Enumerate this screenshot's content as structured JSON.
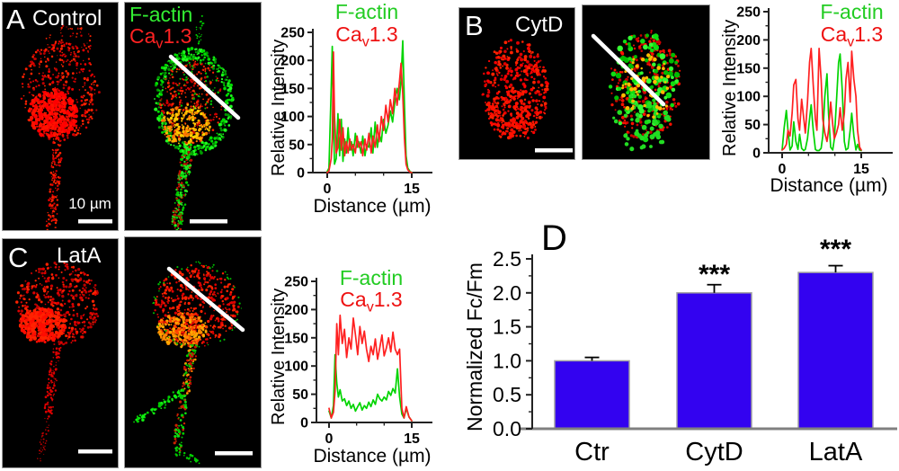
{
  "panels": {
    "a": {
      "letter": "A",
      "title": "Control",
      "scale_label": "10 µm"
    },
    "b": {
      "letter": "B",
      "title": "CytD"
    },
    "c": {
      "letter": "C",
      "title": "LatA"
    },
    "d": {
      "letter": "D"
    }
  },
  "legend": {
    "factin": "F-actin",
    "cav_base": "Ca",
    "cav_sub": "v",
    "cav_rest": "1.3",
    "cav_full": "Cav1.3"
  },
  "colors": {
    "factin_green": "#00d400",
    "cav_red": "#ff2020",
    "bar_blue": "#3302f0",
    "image_background": "#000000",
    "annotation_white": "#ffffff"
  },
  "chart_data": [
    {
      "type": "line",
      "panel": "A",
      "ylabel": "Relative Intensity",
      "xlabel": "Distance (µm)",
      "ylim": [
        0,
        250
      ],
      "xlim": [
        0,
        15
      ],
      "yticks": [
        0,
        50,
        100,
        150,
        200,
        250
      ],
      "xticks": [
        0,
        15
      ],
      "xminorticks": [
        5,
        10
      ],
      "yminorstep": 25,
      "grid": false,
      "legend_position": "top",
      "x": [
        0,
        0.3,
        0.7,
        0.9,
        1.1,
        1.3,
        1.6,
        1.9,
        2.2,
        2.5,
        2.8,
        3.1,
        3.4,
        3.7,
        4.0,
        4.3,
        4.6,
        5.0,
        5.3,
        5.6,
        6.0,
        6.3,
        6.7,
        7.0,
        7.4,
        7.8,
        8.1,
        8.5,
        8.9,
        9.2,
        9.6,
        10.0,
        10.4,
        10.8,
        11.2,
        11.6,
        12.0,
        12.4,
        12.8,
        13.1,
        13.4,
        13.7,
        14.0,
        14.3,
        14.7,
        15.0
      ],
      "series": [
        {
          "name": "F-actin",
          "color": "#00d400",
          "y": [
            2,
            8,
            150,
            225,
            90,
            15,
            25,
            105,
            30,
            95,
            20,
            60,
            35,
            80,
            40,
            55,
            30,
            70,
            45,
            55,
            35,
            65,
            30,
            50,
            45,
            80,
            35,
            90,
            45,
            70,
            55,
            95,
            70,
            85,
            110,
            90,
            125,
            150,
            130,
            165,
            235,
            120,
            30,
            8,
            2,
            0
          ]
        },
        {
          "name": "Cav1.3",
          "color": "#ff2020",
          "y": [
            0,
            3,
            25,
            60,
            215,
            100,
            35,
            45,
            95,
            40,
            80,
            30,
            55,
            35,
            60,
            40,
            50,
            35,
            65,
            45,
            55,
            30,
            60,
            40,
            70,
            35,
            65,
            45,
            85,
            55,
            100,
            75,
            120,
            90,
            130,
            105,
            150,
            120,
            160,
            195,
            140,
            60,
            15,
            5,
            1,
            0
          ]
        }
      ]
    },
    {
      "type": "line",
      "panel": "B",
      "ylabel": "Relative Intensity",
      "xlabel": "Distance (µm)",
      "ylim": [
        0,
        250
      ],
      "xlim": [
        0,
        15
      ],
      "yticks": [
        0,
        50,
        100,
        150,
        200,
        250
      ],
      "xticks": [
        0,
        15
      ],
      "xminorticks": [
        5,
        10
      ],
      "yminorstep": 25,
      "grid": false,
      "legend_position": "top",
      "x": [
        0,
        0.4,
        0.8,
        1.1,
        1.5,
        1.9,
        2.2,
        2.6,
        3.0,
        3.3,
        3.7,
        4.1,
        4.4,
        4.8,
        5.2,
        5.5,
        5.9,
        6.3,
        6.6,
        7.0,
        7.4,
        7.7,
        8.1,
        8.5,
        8.8,
        9.2,
        9.6,
        9.9,
        10.3,
        10.7,
        11.0,
        11.4,
        11.8,
        12.1,
        12.5,
        12.9,
        13.2,
        13.6,
        14.0,
        14.3,
        14.7,
        15.0
      ],
      "series": [
        {
          "name": "F-actin",
          "color": "#00d400",
          "y": [
            5,
            45,
            75,
            40,
            5,
            12,
            55,
            20,
            6,
            33,
            8,
            4,
            6,
            25,
            60,
            85,
            40,
            6,
            4,
            4,
            8,
            30,
            100,
            140,
            70,
            10,
            5,
            25,
            90,
            160,
            175,
            110,
            20,
            5,
            8,
            40,
            70,
            30,
            5,
            15,
            5,
            4
          ]
        },
        {
          "name": "Cav1.3",
          "color": "#ff2020",
          "y": [
            5,
            8,
            15,
            40,
            30,
            70,
            120,
            130,
            60,
            40,
            95,
            60,
            35,
            90,
            160,
            185,
            120,
            60,
            40,
            185,
            130,
            60,
            35,
            20,
            40,
            90,
            50,
            25,
            35,
            50,
            80,
            40,
            70,
            130,
            160,
            90,
            180,
            130,
            100,
            40,
            10,
            5
          ]
        }
      ]
    },
    {
      "type": "line",
      "panel": "C",
      "ylabel": "Relative Intensity",
      "xlabel": "Distance (µm)",
      "ylim": [
        0,
        250
      ],
      "xlim": [
        0,
        15
      ],
      "yticks": [
        0,
        50,
        100,
        150,
        200,
        250
      ],
      "xticks": [
        0,
        15
      ],
      "xminorticks": [
        5,
        10
      ],
      "yminorstep": 25,
      "grid": false,
      "legend_position": "top",
      "x": [
        0,
        0.4,
        0.8,
        1.1,
        1.4,
        1.7,
        2.0,
        2.4,
        2.8,
        3.2,
        3.6,
        4.0,
        4.4,
        4.8,
        5.2,
        5.6,
        6.0,
        6.4,
        6.8,
        7.2,
        7.6,
        8.0,
        8.4,
        8.8,
        9.2,
        9.6,
        10.0,
        10.4,
        10.8,
        11.2,
        11.6,
        12.0,
        12.4,
        12.8,
        13.2,
        13.6,
        14.0,
        14.5,
        15.0
      ],
      "series": [
        {
          "name": "F-actin",
          "color": "#00d400",
          "y": [
            20,
            8,
            30,
            120,
            70,
            45,
            58,
            38,
            42,
            30,
            38,
            25,
            32,
            20,
            28,
            35,
            22,
            30,
            25,
            36,
            28,
            40,
            32,
            50,
            42,
            38,
            45,
            40,
            55,
            48,
            60,
            52,
            95,
            45,
            15,
            8,
            25,
            10,
            3
          ]
        },
        {
          "name": "Cav1.3",
          "color": "#ff2020",
          "y": [
            25,
            8,
            18,
            55,
            175,
            120,
            190,
            140,
            165,
            115,
            150,
            130,
            185,
            155,
            120,
            170,
            140,
            162,
            130,
            108,
            135,
            120,
            148,
            112,
            132,
            155,
            118,
            132,
            150,
            125,
            160,
            130,
            120,
            130,
            25,
            8,
            28,
            10,
            3
          ]
        }
      ]
    },
    {
      "type": "bar",
      "panel": "D",
      "ylabel": "Normalized Fc/Fm",
      "categories": [
        "Ctr",
        "CytD",
        "LatA"
      ],
      "values": [
        1.0,
        2.0,
        2.3
      ],
      "errors": [
        0.05,
        0.12,
        0.1
      ],
      "significance": [
        "",
        "***",
        "***"
      ],
      "ylim": [
        0,
        2.5
      ],
      "yticks": [
        0.0,
        0.5,
        1.0,
        1.5,
        2.0,
        2.5
      ],
      "yminorstep": 0.25,
      "grid": false,
      "bar_color": "#3302f0",
      "bar_border": "#a0a0a0",
      "error_color": "#000000"
    }
  ]
}
